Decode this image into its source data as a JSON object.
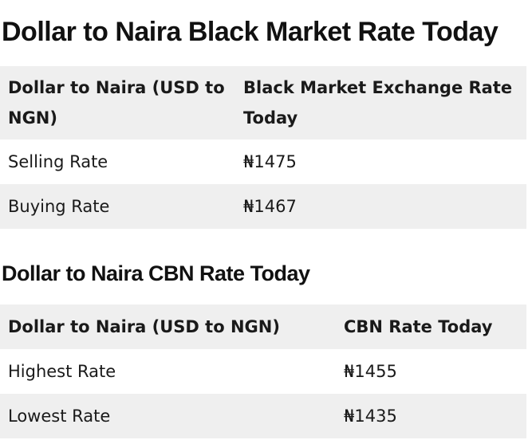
{
  "black_market": {
    "title": "Dollar to Naira Black Market Rate Today",
    "headers": [
      "Dollar to Naira (USD to NGN)",
      "Black Market Exchange Rate Today"
    ],
    "rows": [
      {
        "label": "Selling Rate",
        "value": "₦1475"
      },
      {
        "label": "Buying Rate",
        "value": "₦1467"
      }
    ]
  },
  "cbn": {
    "title": "Dollar to Naira CBN Rate Today",
    "headers": [
      "Dollar to Naira (USD to NGN)",
      "CBN Rate Today"
    ],
    "rows": [
      {
        "label": "Highest Rate",
        "value": "₦1455"
      },
      {
        "label": "Lowest Rate",
        "value": "₦1435"
      }
    ]
  }
}
